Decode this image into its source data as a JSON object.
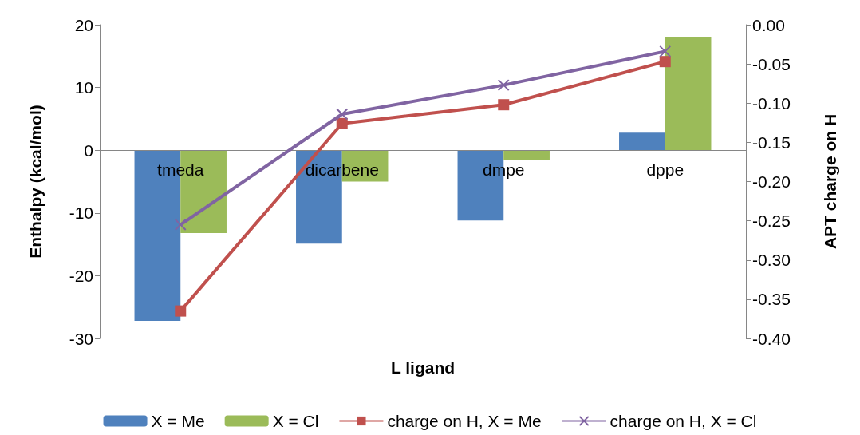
{
  "chart_data": {
    "type": "bar",
    "xlabel": "L ligand",
    "ylabel": "Enthalpy (kcal/mol)",
    "y2label": "APT charge on H",
    "categories": [
      "tmeda",
      "dicarbene",
      "dmpe",
      "dppe"
    ],
    "series": [
      {
        "name": "X = Me",
        "color": "#4f81bd",
        "values": [
          -27.2,
          -14.9,
          -11.2,
          2.8
        ]
      },
      {
        "name": "X = Cl",
        "color": "#9bbb59",
        "values": [
          -13.2,
          -5.0,
          -1.5,
          18.1
        ]
      },
      {
        "name": "charge on H, X = Me",
        "type": "line",
        "axis": "y2",
        "marker": "square",
        "color": "#c0504d",
        "values": [
          -0.365,
          -0.126,
          -0.102,
          -0.047
        ]
      },
      {
        "name": "charge on H, X = Cl",
        "type": "line",
        "axis": "y2",
        "marker": "cross",
        "color": "#8064a2",
        "values": [
          -0.255,
          -0.114,
          -0.077,
          -0.034
        ]
      }
    ],
    "ylim": [
      -30,
      20
    ],
    "yticks": [
      -30,
      -20,
      -10,
      0,
      10,
      20
    ],
    "y2lim": [
      -0.4,
      0
    ],
    "y2ticks": [
      {
        "value": -0.4,
        "label": "-0.40"
      },
      {
        "value": -0.35,
        "label": "-0.35"
      },
      {
        "value": -0.3,
        "label": "-0.30"
      },
      {
        "value": -0.25,
        "label": "-0.25"
      },
      {
        "value": -0.2,
        "label": "-0.20"
      },
      {
        "value": -0.15,
        "label": "-0.15"
      },
      {
        "value": -0.1,
        "label": "-0.10"
      },
      {
        "value": -0.05,
        "label": "-0.05"
      },
      {
        "value": 0,
        "label": "0.00"
      }
    ],
    "grid": false,
    "legend": "bottom"
  }
}
